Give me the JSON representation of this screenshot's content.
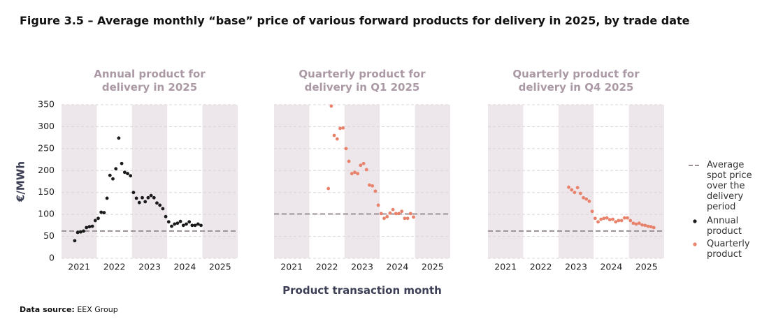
{
  "title": "Figure 3.5 – Average monthly “base” price of various forward products for delivery in 2025, by trade date",
  "y_label": "€/MWh",
  "x_label": "Product transaction month",
  "source_label": "Data source:",
  "source": "EEX Group",
  "legend": {
    "items": [
      {
        "label": "Average spot price over the delivery period",
        "color": "#9d9297",
        "marker": "dashed"
      },
      {
        "label": "Annual product",
        "color": "#1a1a1a",
        "marker": "dot"
      },
      {
        "label": "Quarterly product",
        "color": "#e8826a",
        "marker": "dot"
      }
    ]
  },
  "chart_data": [
    {
      "type": "scatter",
      "title": "Annual product for delivery in 2025",
      "color": "#1a1a1a",
      "spot_price": 62,
      "xlim": [
        2020.5,
        2025.5
      ],
      "xticks": [
        2021,
        2022,
        2023,
        2024,
        2025
      ],
      "ylim": [
        0,
        350
      ],
      "yticks": [
        0,
        50,
        100,
        150,
        200,
        250,
        300,
        350
      ],
      "grid": true,
      "x": [
        2020.875,
        2020.958,
        2021.042,
        2021.125,
        2021.208,
        2021.292,
        2021.375,
        2021.458,
        2021.542,
        2021.625,
        2021.708,
        2021.792,
        2021.875,
        2021.958,
        2022.042,
        2022.125,
        2022.208,
        2022.292,
        2022.375,
        2022.458,
        2022.542,
        2022.625,
        2022.708,
        2022.792,
        2022.875,
        2022.958,
        2023.042,
        2023.125,
        2023.208,
        2023.292,
        2023.375,
        2023.458,
        2023.542,
        2023.625,
        2023.708,
        2023.792,
        2023.875,
        2023.958,
        2024.042,
        2024.125,
        2024.208,
        2024.292,
        2024.375,
        2024.458
      ],
      "values": [
        40,
        59,
        60,
        62,
        70,
        72,
        73,
        86,
        91,
        105,
        104,
        137,
        189,
        181,
        204,
        274,
        216,
        196,
        193,
        188,
        150,
        137,
        127,
        138,
        129,
        138,
        143,
        138,
        126,
        121,
        113,
        95,
        83,
        73,
        78,
        80,
        84,
        75,
        78,
        83,
        75,
        75,
        78,
        75
      ]
    },
    {
      "type": "scatter",
      "title": "Quarterly product for delivery in Q1 2025",
      "color": "#e8826a",
      "spot_price": 101,
      "xlim": [
        2020.5,
        2025.5
      ],
      "xticks": [
        2021,
        2022,
        2023,
        2024,
        2025
      ],
      "ylim": [
        0,
        350
      ],
      "yticks": [
        0,
        50,
        100,
        150,
        200,
        250,
        300,
        350
      ],
      "grid": true,
      "x": [
        2022.042,
        2022.125,
        2022.208,
        2022.292,
        2022.375,
        2022.458,
        2022.542,
        2022.625,
        2022.708,
        2022.792,
        2022.875,
        2022.958,
        2023.042,
        2023.125,
        2023.208,
        2023.292,
        2023.375,
        2023.458,
        2023.542,
        2023.625,
        2023.708,
        2023.792,
        2023.875,
        2023.958,
        2024.042,
        2024.125,
        2024.208,
        2024.292,
        2024.375,
        2024.458
      ],
      "values": [
        159,
        347,
        280,
        272,
        296,
        297,
        250,
        221,
        193,
        196,
        193,
        212,
        216,
        202,
        167,
        165,
        153,
        121,
        102,
        91,
        95,
        103,
        111,
        102,
        102,
        107,
        91,
        91,
        102,
        94
      ]
    },
    {
      "type": "scatter",
      "title": "Quarterly product for delivery in Q4 2025",
      "color": "#e8826a",
      "spot_price": 62,
      "xlim": [
        2020.5,
        2025.5
      ],
      "xticks": [
        2021,
        2022,
        2023,
        2024,
        2025
      ],
      "ylim": [
        0,
        350
      ],
      "yticks": [
        0,
        50,
        100,
        150,
        200,
        250,
        300,
        350
      ],
      "grid": true,
      "x": [
        2022.792,
        2022.875,
        2022.958,
        2023.042,
        2023.125,
        2023.208,
        2023.292,
        2023.375,
        2023.458,
        2023.542,
        2023.625,
        2023.708,
        2023.792,
        2023.875,
        2023.958,
        2024.042,
        2024.125,
        2024.208,
        2024.292,
        2024.375,
        2024.458,
        2024.542,
        2024.625,
        2024.708,
        2024.792,
        2024.875,
        2024.958,
        2025.042,
        2025.125,
        2025.208
      ],
      "values": [
        162,
        156,
        150,
        161,
        148,
        138,
        135,
        130,
        107,
        91,
        83,
        89,
        91,
        92,
        88,
        89,
        83,
        86,
        86,
        92,
        92,
        86,
        80,
        78,
        80,
        76,
        75,
        73,
        72,
        70
      ]
    }
  ]
}
